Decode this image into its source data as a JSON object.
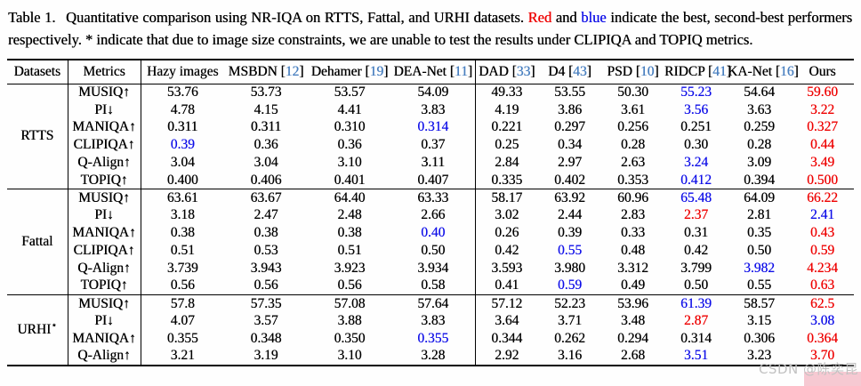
{
  "colors": {
    "best": "#ee0000",
    "second": "#0f0fe8",
    "cite": "#4a80c0",
    "wmbox": "#f6c9d2",
    "wmtext": "#c2c2c2"
  },
  "caption": {
    "prefix": "Table 1.",
    "part1": "Quantitative comparison using NR-IQA on RTTS, Fattal, and URHI datasets.",
    "red_word": "Red",
    "and_word": "and",
    "blue_word": "blue",
    "part2": "indicate the best, second-best performers respectively.",
    "star_note": "* indicate that due to image size constraints, we are unable to test the results under CLIPIQA and TOPIQ metrics."
  },
  "table": {
    "header": {
      "datasets": "Datasets",
      "metrics": "Metrics",
      "methods": [
        {
          "name": "Hazy images",
          "cite": ""
        },
        {
          "name": "MSBDN",
          "cite": "12"
        },
        {
          "name": "Dehamer",
          "cite": "19"
        },
        {
          "name": "DEA-Net",
          "cite": "11"
        },
        {
          "name": "DAD",
          "cite": "33"
        },
        {
          "name": "D4",
          "cite": "43"
        },
        {
          "name": "PSD",
          "cite": "10"
        },
        {
          "name": "RIDCP",
          "cite": "41"
        },
        {
          "name": "KA-Net",
          "cite": "16"
        },
        {
          "name": "Ours",
          "cite": ""
        }
      ]
    },
    "groups": [
      {
        "dataset": "RTTS",
        "dataset_sup": "",
        "rows": [
          {
            "metric": "MUSIQ↑",
            "values": [
              "53.76",
              "53.73",
              "53.57",
              "54.09",
              "49.33",
              "53.55",
              "50.30",
              "55.23",
              "54.64",
              "59.60"
            ],
            "styles": [
              "",
              "",
              "",
              "",
              "",
              "",
              "",
              "b",
              "",
              "r"
            ]
          },
          {
            "metric": "PI↓",
            "values": [
              "4.78",
              "4.15",
              "4.41",
              "3.83",
              "4.19",
              "3.86",
              "3.61",
              "3.56",
              "3.63",
              "3.22"
            ],
            "styles": [
              "",
              "",
              "",
              "",
              "",
              "",
              "",
              "b",
              "",
              "r"
            ]
          },
          {
            "metric": "MANIQA↑",
            "values": [
              "0.311",
              "0.311",
              "0.310",
              "0.314",
              "0.221",
              "0.297",
              "0.256",
              "0.251",
              "0.259",
              "0.327"
            ],
            "styles": [
              "",
              "",
              "",
              "b",
              "",
              "",
              "",
              "",
              "",
              "r"
            ]
          },
          {
            "metric": "CLIPIQA↑",
            "values": [
              "0.39",
              "0.36",
              "0.36",
              "0.37",
              "0.25",
              "0.34",
              "0.28",
              "0.30",
              "0.28",
              "0.44"
            ],
            "styles": [
              "b",
              "",
              "",
              "",
              "",
              "",
              "",
              "",
              "",
              "r"
            ]
          },
          {
            "metric": "Q-Align↑",
            "values": [
              "3.04",
              "3.04",
              "3.10",
              "3.11",
              "2.84",
              "2.97",
              "2.63",
              "3.24",
              "3.09",
              "3.49"
            ],
            "styles": [
              "",
              "",
              "",
              "",
              "",
              "",
              "",
              "b",
              "",
              "r"
            ]
          },
          {
            "metric": "TOPIQ↑",
            "values": [
              "0.400",
              "0.406",
              "0.401",
              "0.407",
              "0.335",
              "0.402",
              "0.353",
              "0.412",
              "0.394",
              "0.500"
            ],
            "styles": [
              "",
              "",
              "",
              "",
              "",
              "",
              "",
              "b",
              "",
              "r"
            ]
          }
        ]
      },
      {
        "dataset": "Fattal",
        "dataset_sup": "",
        "rows": [
          {
            "metric": "MUSIQ↑",
            "values": [
              "63.61",
              "63.67",
              "64.40",
              "63.33",
              "58.17",
              "63.92",
              "60.96",
              "65.48",
              "64.09",
              "66.22"
            ],
            "styles": [
              "",
              "",
              "",
              "",
              "",
              "",
              "",
              "b",
              "",
              "r"
            ]
          },
          {
            "metric": "PI↓",
            "values": [
              "3.18",
              "2.47",
              "2.48",
              "2.66",
              "3.02",
              "2.44",
              "2.83",
              "2.37",
              "2.81",
              "2.41"
            ],
            "styles": [
              "",
              "",
              "",
              "",
              "",
              "",
              "",
              "r",
              "",
              "b"
            ]
          },
          {
            "metric": "MANIQA↑",
            "values": [
              "0.38",
              "0.38",
              "0.38",
              "0.40",
              "0.26",
              "0.39",
              "0.33",
              "0.31",
              "0.35",
              "0.43"
            ],
            "styles": [
              "",
              "",
              "",
              "b",
              "",
              "",
              "",
              "",
              "",
              "r"
            ]
          },
          {
            "metric": "CLIPIQA↑",
            "values": [
              "0.51",
              "0.53",
              "0.51",
              "0.50",
              "0.42",
              "0.55",
              "0.48",
              "0.42",
              "0.50",
              "0.59"
            ],
            "styles": [
              "",
              "",
              "",
              "",
              "",
              "b",
              "",
              "",
              "",
              "r"
            ]
          },
          {
            "metric": "Q-Align↑",
            "values": [
              "3.739",
              "3.943",
              "3.923",
              "3.934",
              "3.593",
              "3.980",
              "3.312",
              "3.799",
              "3.982",
              "4.234"
            ],
            "styles": [
              "",
              "",
              "",
              "",
              "",
              "",
              "",
              "",
              "b",
              "r"
            ]
          },
          {
            "metric": "TOPIQ↑",
            "values": [
              "0.56",
              "0.56",
              "0.56",
              "0.58",
              "0.41",
              "0.59",
              "0.49",
              "0.50",
              "0.55",
              "0.63"
            ],
            "styles": [
              "",
              "",
              "",
              "",
              "",
              "b",
              "",
              "",
              "",
              "r"
            ]
          }
        ]
      },
      {
        "dataset": "URHI",
        "dataset_sup": "⋆",
        "rows": [
          {
            "metric": "MUSIQ↑",
            "values": [
              "57.8",
              "57.35",
              "57.08",
              "57.64",
              "57.12",
              "52.23",
              "53.96",
              "61.39",
              "58.57",
              "62.5"
            ],
            "styles": [
              "",
              "",
              "",
              "",
              "",
              "",
              "",
              "b",
              "",
              "r"
            ]
          },
          {
            "metric": "PI↓",
            "values": [
              "4.07",
              "3.57",
              "3.88",
              "3.83",
              "3.64",
              "3.71",
              "3.48",
              "2.87",
              "3.15",
              "3.08"
            ],
            "styles": [
              "",
              "",
              "",
              "",
              "",
              "",
              "",
              "r",
              "",
              "b"
            ]
          },
          {
            "metric": "MANIQA↑",
            "values": [
              "0.355",
              "0.348",
              "0.350",
              "0.355",
              "0.344",
              "0.262",
              "0.294",
              "0.314",
              "0.306",
              "0.364"
            ],
            "styles": [
              "",
              "",
              "",
              "b",
              "",
              "",
              "",
              "",
              "",
              "r"
            ]
          },
          {
            "metric": "Q-Align↑",
            "values": [
              "3.21",
              "3.19",
              "3.10",
              "3.28",
              "2.92",
              "3.16",
              "2.68",
              "3.51",
              "3.23",
              "3.70"
            ],
            "styles": [
              "",
              "",
              "",
              "",
              "",
              "",
              "",
              "b",
              "",
              "r"
            ]
          }
        ]
      }
    ]
  },
  "watermark": {
    "text": "CSDN @陈奕昆"
  }
}
